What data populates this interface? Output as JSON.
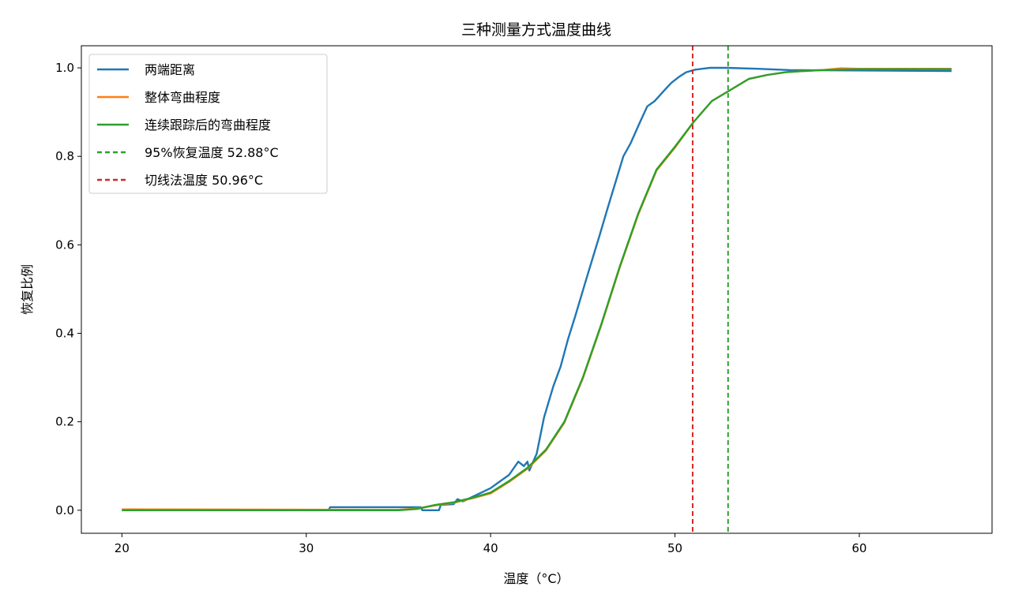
{
  "chart_data": {
    "type": "line",
    "title": "三种测量方式温度曲线",
    "xlabel": "温度（°C）",
    "ylabel": "恢复比例",
    "xlim": [
      17.8,
      67.2
    ],
    "ylim": [
      -0.052,
      1.05
    ],
    "xticks": [
      20,
      30,
      40,
      50,
      60
    ],
    "xtick_labels": [
      "20",
      "30",
      "40",
      "50",
      "60"
    ],
    "yticks": [
      0.0,
      0.2,
      0.4,
      0.6,
      0.8,
      1.0
    ],
    "ytick_labels": [
      "0.0",
      "0.2",
      "0.4",
      "0.6",
      "0.8",
      "1.0"
    ],
    "grid": false,
    "legend_position": "top-left",
    "series": [
      {
        "name": "两端距离",
        "color": "#1f77b4",
        "style": "solid",
        "x": [
          20,
          31.2,
          31.3,
          36.2,
          36.3,
          37.2,
          37.3,
          38.0,
          38.2,
          38.5,
          39.0,
          39.5,
          40.0,
          40.5,
          41.0,
          41.5,
          41.8,
          42.0,
          42.1,
          42.5,
          42.9,
          43.4,
          43.8,
          44.2,
          44.6,
          45.1,
          45.5,
          45.9,
          46.4,
          46.8,
          47.2,
          47.6,
          48.1,
          48.5,
          48.9,
          49.4,
          49.8,
          50.2,
          50.6,
          51.1,
          51.9,
          52.8,
          54.5,
          56.2,
          65.0
        ],
        "y": [
          0,
          0,
          0.007,
          0.007,
          0.0,
          0.0,
          0.012,
          0.014,
          0.025,
          0.02,
          0.03,
          0.04,
          0.05,
          0.065,
          0.08,
          0.11,
          0.1,
          0.11,
          0.09,
          0.128,
          0.21,
          0.28,
          0.325,
          0.387,
          0.44,
          0.51,
          0.565,
          0.62,
          0.69,
          0.745,
          0.8,
          0.83,
          0.877,
          0.913,
          0.925,
          0.948,
          0.966,
          0.979,
          0.99,
          0.996,
          1.0,
          1.0,
          0.998,
          0.995,
          0.993
        ]
      },
      {
        "name": "整体弯曲程度",
        "color": "#ff7f0e",
        "style": "solid",
        "x": [
          20,
          35,
          36,
          37,
          38,
          39,
          40,
          41,
          42,
          43,
          44,
          45,
          46,
          47,
          48,
          49,
          50,
          51,
          52,
          53,
          54,
          55,
          56,
          57,
          58,
          59,
          60,
          65
        ],
        "y": [
          0.002,
          0.001,
          0.004,
          0.011,
          0.017,
          0.027,
          0.038,
          0.064,
          0.094,
          0.135,
          0.198,
          0.298,
          0.418,
          0.548,
          0.668,
          0.768,
          0.82,
          0.877,
          0.925,
          0.95,
          0.975,
          0.984,
          0.99,
          0.993,
          0.995,
          0.999,
          0.998,
          0.998
        ]
      },
      {
        "name": "连续跟踪后的弯曲程度",
        "color": "#2ca02c",
        "style": "solid",
        "x": [
          20,
          35,
          36,
          37,
          38,
          39,
          40,
          41,
          42,
          43,
          44,
          45,
          46,
          47,
          48,
          49,
          50,
          51,
          52,
          53,
          54,
          55,
          56,
          57,
          58,
          60,
          65
        ],
        "y": [
          0,
          0,
          0.003,
          0.012,
          0.018,
          0.028,
          0.04,
          0.066,
          0.096,
          0.137,
          0.2,
          0.3,
          0.42,
          0.55,
          0.67,
          0.77,
          0.822,
          0.877,
          0.925,
          0.95,
          0.975,
          0.984,
          0.99,
          0.993,
          0.995,
          0.997,
          0.997
        ]
      },
      {
        "name": "95%恢复温度 52.88°C",
        "color": "#2ca02c",
        "style": "dashed",
        "vline": 52.88
      },
      {
        "name": "切线法温度 50.96°C",
        "color": "#d62728",
        "style": "dashed",
        "vline": 50.96
      }
    ]
  }
}
